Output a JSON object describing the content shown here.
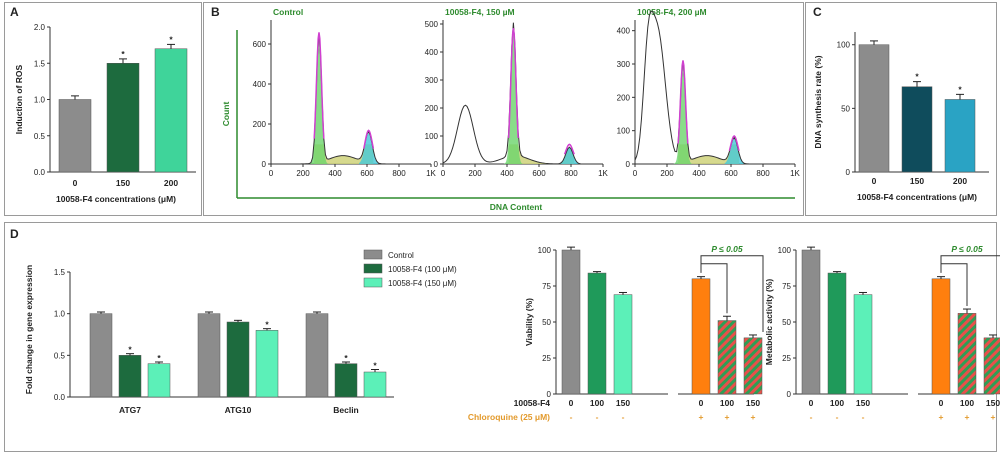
{
  "panels": {
    "A": "A",
    "B": "B",
    "C": "C",
    "D": "D"
  },
  "colors": {
    "gray": "#8c8c8c",
    "dark_green": "#1d6b3e",
    "mid_green": "#1f9a5a",
    "light_green": "#3fd49a",
    "mint": "#5cf0b8",
    "dark_teal": "#0f4c5c",
    "teal": "#2aa3c4",
    "orange": "#ff7f0e",
    "stripe_green": "#2f9e55",
    "stripe_red": "#e8504a",
    "magenta": "#d040d0",
    "cyan": "#44c8d8",
    "yellow_fill": "#cfd27a",
    "flow_green": "#6cd46c",
    "axis_green": "#2e8b2e"
  },
  "chart_data": [
    {
      "id": "A",
      "type": "bar",
      "categories": [
        "0",
        "150",
        "200"
      ],
      "values": [
        1.0,
        1.5,
        1.7
      ],
      "errors": [
        0.05,
        0.06,
        0.06
      ],
      "significance": [
        "",
        "*",
        "*"
      ],
      "xlabel": "10058-F4 concentrations (μM)",
      "ylabel": "Induction of ROS",
      "ylim": [
        0,
        2.0
      ],
      "yticks": [
        "0.0",
        "0.5",
        "1.0",
        "1.5",
        "2.0"
      ]
    },
    {
      "id": "B",
      "type": "area",
      "xlabel": "DNA Content",
      "ylabel": "Count",
      "subplots": [
        {
          "title": "Control",
          "ymax": 700,
          "yticks": [
            "0",
            "200",
            "400",
            "600"
          ],
          "xticks": [
            "0",
            "200",
            "400",
            "600",
            "800",
            "1K"
          ]
        },
        {
          "title": "10058-F4, 150 µM",
          "ymax": 500,
          "yticks": [
            "0",
            "100",
            "200",
            "300",
            "400",
            "500"
          ],
          "xticks": [
            "0",
            "200",
            "400",
            "600",
            "800",
            "1K"
          ]
        },
        {
          "title": "10058-F4, 200 µM",
          "ymax": 420,
          "yticks": [
            "0",
            "100",
            "200",
            "300",
            "400"
          ],
          "xticks": [
            "0",
            "200",
            "400",
            "600",
            "800",
            "1K"
          ]
        }
      ]
    },
    {
      "id": "C",
      "type": "bar",
      "categories": [
        "0",
        "150",
        "200"
      ],
      "values": [
        100,
        67,
        57
      ],
      "errors": [
        3,
        4,
        4
      ],
      "significance": [
        "",
        "*",
        "*"
      ],
      "xlabel": "10058-F4 concentrations (μM)",
      "ylabel": "DNA synthesis rate (%)",
      "ylim": [
        0,
        110
      ],
      "yticks": [
        "0",
        "50",
        "100"
      ]
    },
    {
      "id": "D1",
      "type": "bar",
      "categories": [
        "ATG7",
        "ATG10",
        "Beclin"
      ],
      "series": [
        {
          "name": "Control",
          "values": [
            1.0,
            1.0,
            1.0
          ],
          "errors": [
            0.02,
            0.02,
            0.02
          ]
        },
        {
          "name": "10058-F4 (100 μM)",
          "values": [
            0.5,
            0.9,
            0.4
          ],
          "errors": [
            0.02,
            0.02,
            0.02
          ]
        },
        {
          "name": "10058-F4 (150 μM)",
          "values": [
            0.4,
            0.8,
            0.3
          ],
          "errors": [
            0.02,
            0.02,
            0.03
          ]
        }
      ],
      "significance": [
        [
          "",
          "*",
          "*"
        ],
        [
          "",
          "",
          "*"
        ],
        [
          "",
          "*",
          "*"
        ]
      ],
      "ylabel": "Fold change in gene expression",
      "ylim": [
        0,
        1.5
      ],
      "yticks": [
        "0.0",
        "0.5",
        "1.0",
        "1.5"
      ]
    },
    {
      "id": "D2",
      "type": "bar",
      "values": [
        100,
        84,
        69,
        80,
        51,
        39
      ],
      "errors": [
        2,
        1,
        1.5,
        1.5,
        3,
        2
      ],
      "x_labels": [
        "0",
        "100",
        "150",
        "0",
        "100",
        "150"
      ],
      "chloroquine": [
        "-",
        "-",
        "-",
        "+",
        "+",
        "+"
      ],
      "ylabel": "Viability (%)",
      "ylim": [
        0,
        100
      ],
      "yticks": [
        "0",
        "25",
        "50",
        "75",
        "100"
      ],
      "pvalue": "P ≤ 0.05"
    },
    {
      "id": "D3",
      "type": "bar",
      "values": [
        100,
        84,
        69,
        80,
        56,
        39
      ],
      "errors": [
        2,
        1,
        1.5,
        1.5,
        3,
        2
      ],
      "x_labels": [
        "0",
        "100",
        "150",
        "0",
        "100",
        "150"
      ],
      "chloroquine": [
        "-",
        "-",
        "-",
        "+",
        "+",
        "+"
      ],
      "ylabel": "Metabolic activity (%)",
      "ylim": [
        0,
        100
      ],
      "yticks": [
        "0",
        "25",
        "50",
        "75",
        "100"
      ],
      "pvalue": "P ≤ 0.05"
    }
  ],
  "treatment_labels": {
    "f4": "10058-F4",
    "chloroquine": "Chloroquine (25 μM)"
  }
}
